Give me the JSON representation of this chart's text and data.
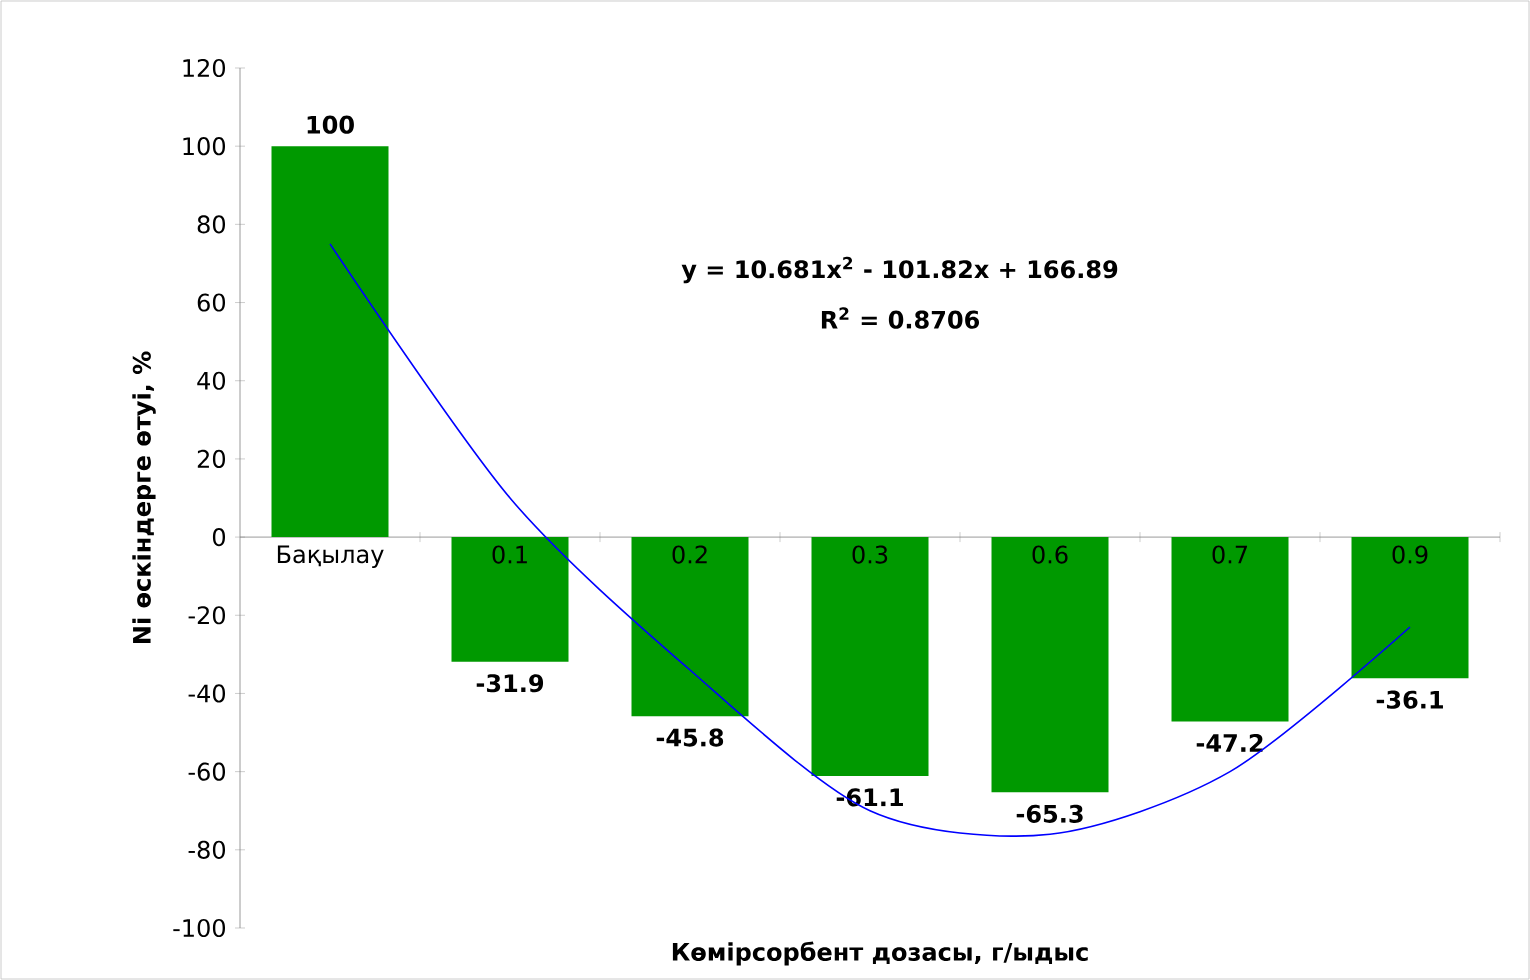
{
  "chart_data": {
    "type": "bar",
    "xlabel": "Көмірсорбент дозасы, г/ыдыс",
    "ylabel": "Ni өскіндерге өтуі, %",
    "categories": [
      "Бақылау",
      "0.1",
      "0.2",
      "0.3",
      "0.6",
      "0.7",
      "0.9"
    ],
    "series": [
      {
        "color": "#009900",
        "values": [
          100,
          -31.9,
          -45.8,
          -61.1,
          -65.3,
          -47.2,
          -36.1
        ],
        "value_labels": [
          "100",
          "-31.9",
          "-45.8",
          "-61.1",
          "-65.3",
          "-47.2",
          "-36.1"
        ]
      },
      {
        "type": "line",
        "color": "#0000ff",
        "marker": "none",
        "x": [
          "Бақылау",
          "0.1",
          "0.2",
          "0.3",
          "0.6",
          "0.7",
          "0.9"
        ],
        "values": [
          75,
          10,
          -34,
          -70,
          -76,
          -60,
          -23
        ]
      }
    ],
    "annotations": [
      "y = 10.681x$^{2}$ - 101.82x + 166.89",
      "R$^{2}$ = 0.8706"
    ],
    "ylim": [
      -100,
      120
    ],
    "yticks": [
      -100,
      -80,
      -60,
      -40,
      -20,
      0,
      20,
      40,
      60,
      80,
      100,
      120
    ]
  }
}
